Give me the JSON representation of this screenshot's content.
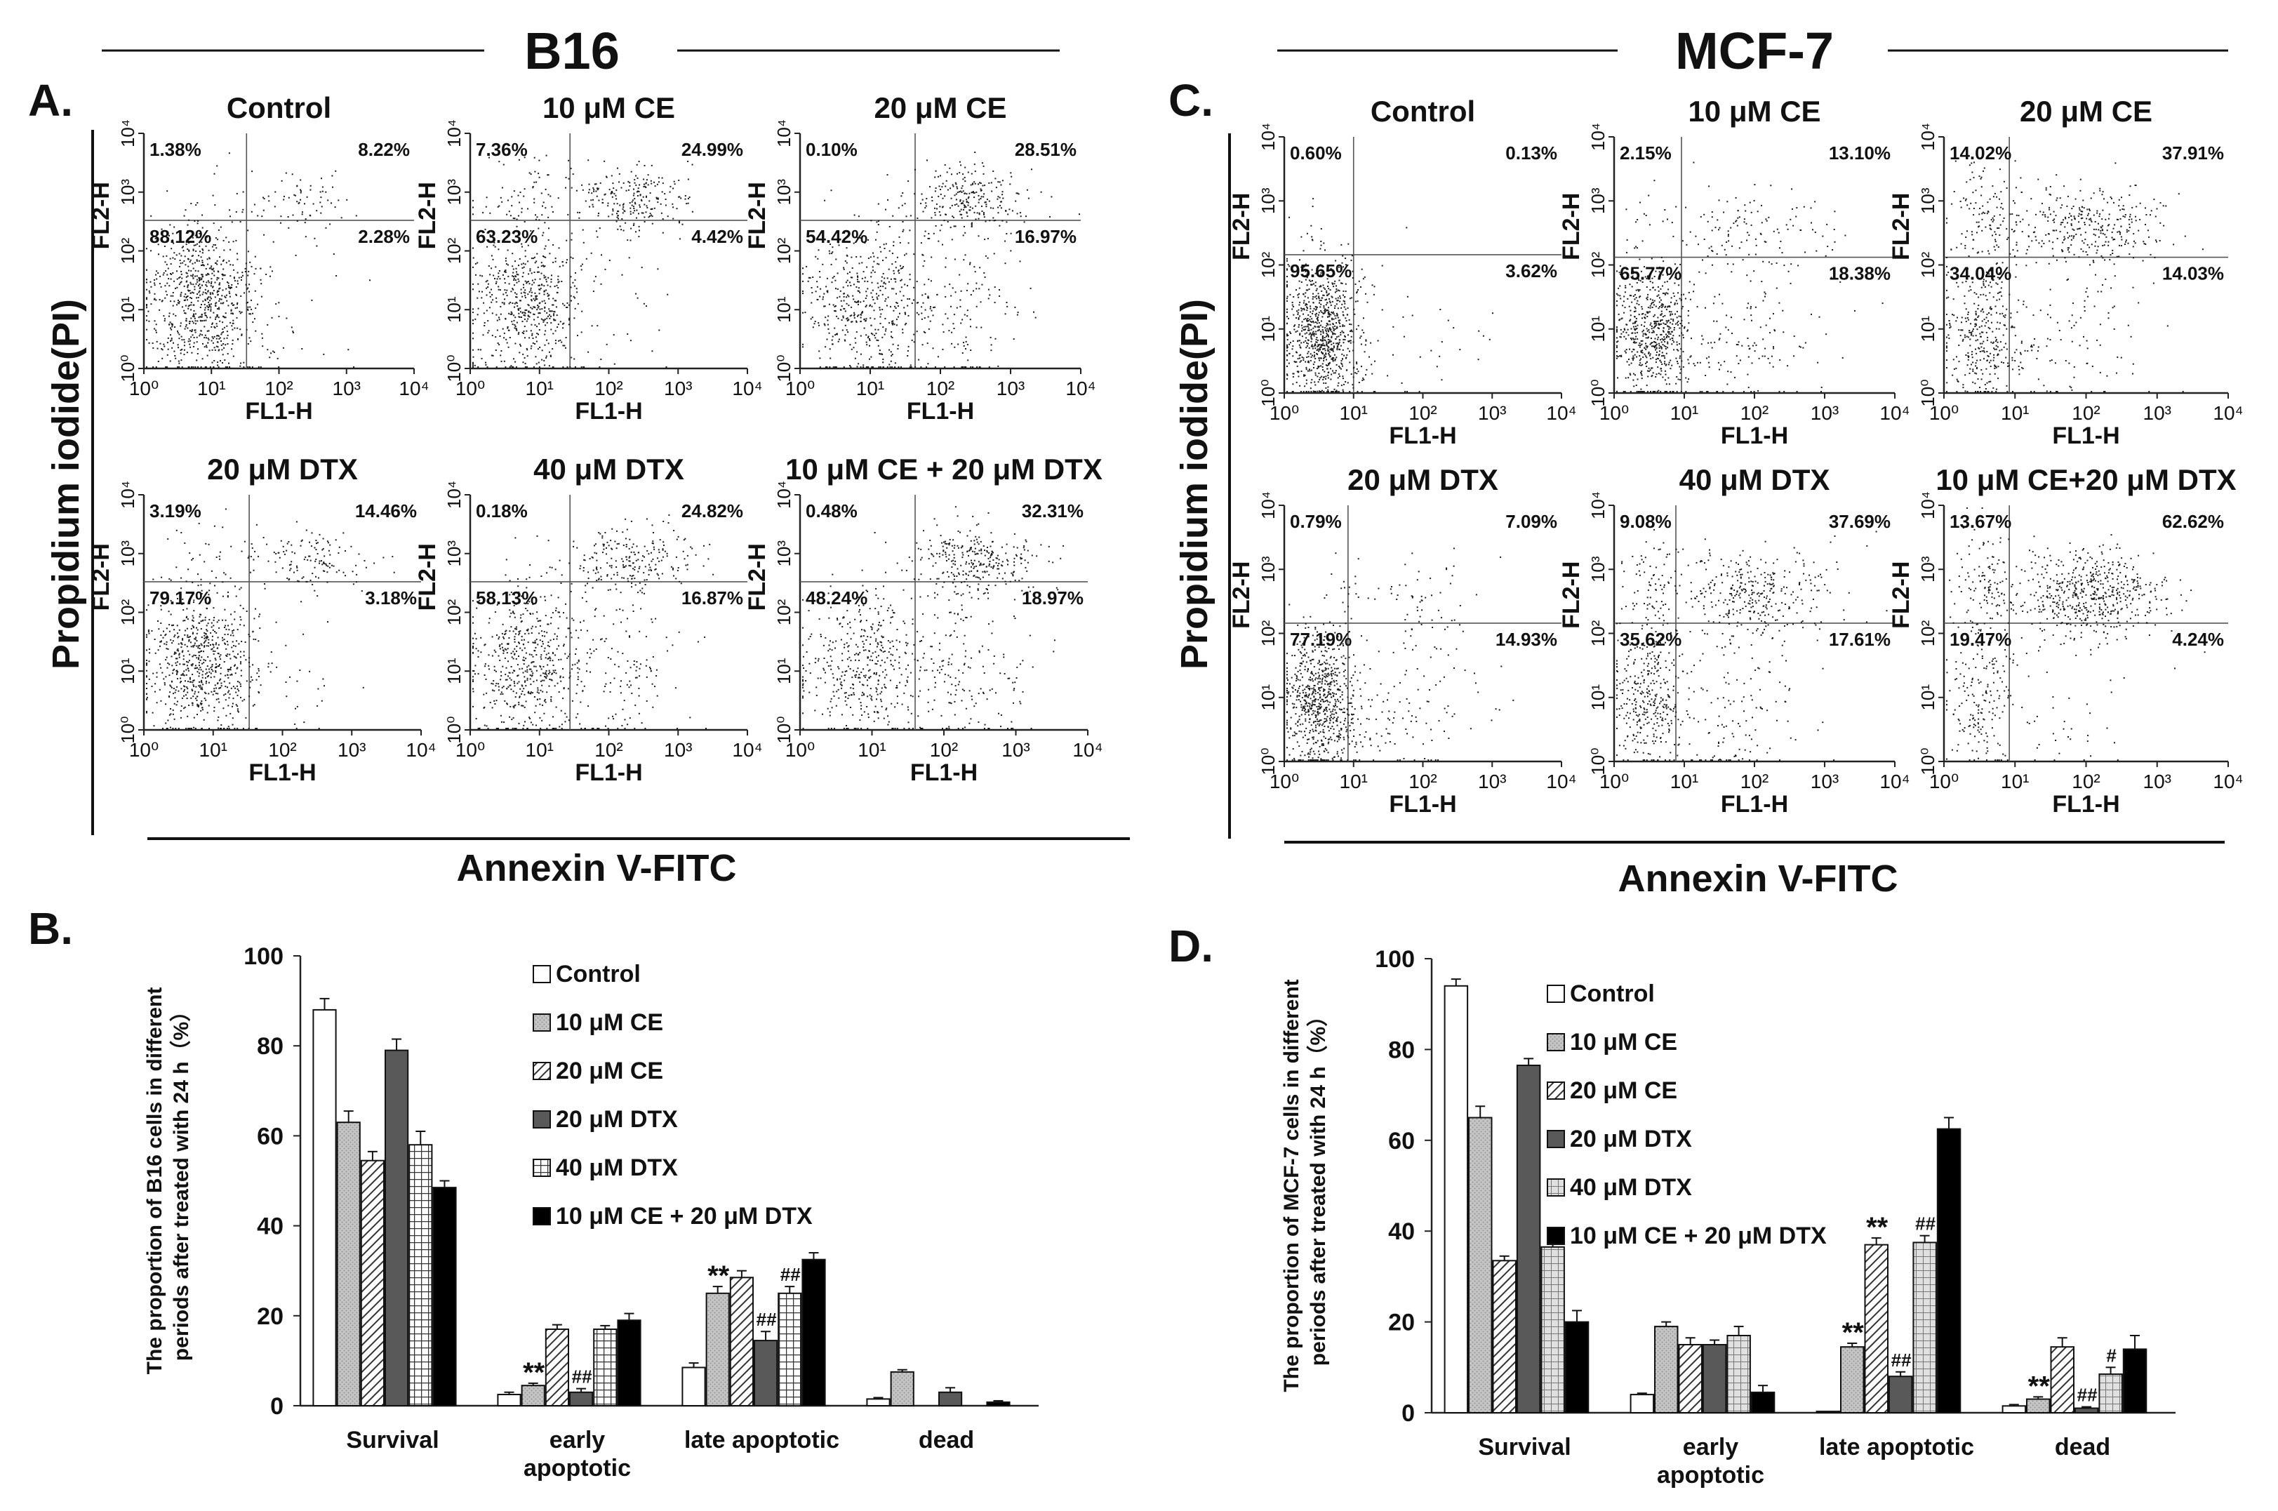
{
  "figure": {
    "colors": {
      "ink": "#111111",
      "grid": "#444444",
      "dot": "#1a1a1a",
      "bar_dark": "#555555",
      "bar_mid": "#9a9a9a",
      "bar_black": "#000000",
      "bar_white": "#ffffff"
    },
    "section_titles": {
      "b16": "B16",
      "mcf7": "MCF-7"
    },
    "panel_letters": {
      "A": "A.",
      "B": "B.",
      "C": "C.",
      "D": "D."
    },
    "flow_axis": {
      "y_title": "Propidium iodide(PI)",
      "x_title": "Annexin V-FITC",
      "x_label": "FL1-H",
      "y_label": "FL2-H",
      "ticks": [
        "10⁰",
        "10¹",
        "10²",
        "10³",
        "10⁴"
      ]
    },
    "flow_panels": {
      "A": [
        {
          "title": "Control",
          "ul": "1.38%",
          "ur": "8.22%",
          "ll": "88.12%",
          "lr": "2.28%"
        },
        {
          "title": "10 μM CE",
          "ul": "7.36%",
          "ur": "24.99%",
          "ll": "63.23%",
          "lr": "4.42%"
        },
        {
          "title": "20 μM CE",
          "ul": "0.10%",
          "ur": "28.51%",
          "ll": "54.42%",
          "lr": "16.97%"
        },
        {
          "title": "20 μM DTX",
          "ul": "3.19%",
          "ur": "14.46%",
          "ll": "79.17%",
          "lr": "3.18%"
        },
        {
          "title": "40 μM DTX",
          "ul": "0.18%",
          "ur": "24.82%",
          "ll": "58.13%",
          "lr": "16.87%"
        },
        {
          "title": "10 μM CE + 20 μM DTX",
          "ul": "0.48%",
          "ur": "32.31%",
          "ll": "48.24%",
          "lr": "18.97%"
        }
      ],
      "C": [
        {
          "title": "Control",
          "ul": "0.60%",
          "ur": "0.13%",
          "ll": "95.65%",
          "lr": "3.62%"
        },
        {
          "title": "10 μM CE",
          "ul": "2.15%",
          "ur": "13.10%",
          "ll": "65.77%",
          "lr": "18.38%"
        },
        {
          "title": "20 μM CE",
          "ul": "14.02%",
          "ur": "37.91%",
          "ll": "34.04%",
          "lr": "14.03%"
        },
        {
          "title": "20 μM DTX",
          "ul": "0.79%",
          "ur": "7.09%",
          "ll": "77.19%",
          "lr": "14.93%"
        },
        {
          "title": "40 μM DTX",
          "ul": "9.08%",
          "ur": "37.69%",
          "ll": "35.62%",
          "lr": "17.61%"
        },
        {
          "title": "10 μM CE+20 μM DTX",
          "ul": "13.67%",
          "ur": "62.62%",
          "ll": "19.47%",
          "lr": "4.24%"
        }
      ]
    }
  },
  "chart_data": [
    {
      "type": "bar",
      "panel": "B",
      "ylabel": "The proportion of B16 cells in different periods after treated with 24 h（%）",
      "ylabel_lines": [
        "The proportion of B16 cells in different",
        "periods after treated with 24 h（%）"
      ],
      "ylim": [
        0,
        100
      ],
      "yticks": [
        0,
        20,
        40,
        60,
        80,
        100
      ],
      "categories": [
        "Survival",
        "early apoptotic",
        "late apoptotic",
        "dead"
      ],
      "category_lines": [
        [
          "Survival"
        ],
        [
          "early",
          "apoptotic"
        ],
        [
          "late apoptotic"
        ],
        [
          "dead"
        ]
      ],
      "legend_position": "top-right",
      "series": [
        {
          "name": "Control",
          "pattern": "white",
          "values": [
            88,
            2.5,
            8.5,
            1.5
          ],
          "errors": [
            2.5,
            0.5,
            1,
            0.3
          ]
        },
        {
          "name": "10 μM CE",
          "pattern": "light",
          "values": [
            63,
            4.5,
            25,
            7.5
          ],
          "errors": [
            2.5,
            0.5,
            1.5,
            0.5
          ]
        },
        {
          "name": "20 μM CE",
          "pattern": "diag",
          "values": [
            54.5,
            17,
            28.5,
            0
          ],
          "errors": [
            2,
            1,
            1.5,
            0
          ]
        },
        {
          "name": "20 μM DTX",
          "pattern": "dark",
          "values": [
            79,
            3,
            14.5,
            3
          ],
          "errors": [
            2.5,
            0.8,
            2,
            1
          ]
        },
        {
          "name": "40 μM DTX",
          "pattern": "grid",
          "values": [
            58,
            17,
            25,
            0
          ],
          "errors": [
            3,
            0.8,
            1.5,
            0
          ]
        },
        {
          "name": "10 μM CE + 20 μM DTX",
          "pattern": "black",
          "values": [
            48.5,
            19,
            32.5,
            0.8
          ],
          "errors": [
            1.5,
            1.5,
            1.5,
            0.3
          ]
        }
      ],
      "annotations": [
        {
          "text": "**",
          "category": 1,
          "series": 1
        },
        {
          "text": "##",
          "category": 1,
          "series": 3
        },
        {
          "text": "**",
          "category": 2,
          "series": 1
        },
        {
          "text": "##",
          "category": 2,
          "series": 3
        },
        {
          "text": "##",
          "category": 2,
          "series": 4
        }
      ]
    },
    {
      "type": "bar",
      "panel": "D",
      "ylabel": "The proportion of MCF-7 cells in different periods after treated with 24 h（%）",
      "ylabel_lines": [
        "The proportion of MCF-7 cells in different",
        "periods after treated with 24 h（%）"
      ],
      "ylim": [
        0,
        100
      ],
      "yticks": [
        0,
        20,
        40,
        60,
        80,
        100
      ],
      "categories": [
        "Survival",
        "early apoptotic",
        "late apoptotic",
        "dead"
      ],
      "category_lines": [
        [
          "Survival"
        ],
        [
          "early",
          "apoptotic"
        ],
        [
          "late apoptotic"
        ],
        [
          "dead"
        ]
      ],
      "legend_position": "top-right",
      "series": [
        {
          "name": "Control",
          "pattern": "white",
          "values": [
            94,
            4,
            0.3,
            1.5
          ],
          "errors": [
            1.5,
            0.3,
            0,
            0.3
          ]
        },
        {
          "name": "10 μM CE",
          "pattern": "light",
          "values": [
            65,
            19,
            14.5,
            3
          ],
          "errors": [
            2.5,
            1,
            0.8,
            0.5
          ]
        },
        {
          "name": "20 μM CE",
          "pattern": "diag",
          "values": [
            33.5,
            15,
            37,
            14.5
          ],
          "errors": [
            1,
            1.5,
            1.5,
            2
          ]
        },
        {
          "name": "20 μM DTX",
          "pattern": "dark",
          "values": [
            76.5,
            15,
            8,
            1
          ],
          "errors": [
            1.5,
            1,
            1,
            0.3
          ]
        },
        {
          "name": "40 μM DTX",
          "pattern": "lightgrid",
          "values": [
            36.5,
            17,
            37.5,
            8.5
          ],
          "errors": [
            2,
            2,
            1.5,
            1.5
          ]
        },
        {
          "name": "10 μM CE + 20 μM DTX",
          "pattern": "black",
          "values": [
            20,
            4.5,
            62.5,
            14
          ],
          "errors": [
            2.5,
            1.5,
            2.5,
            3
          ]
        }
      ],
      "annotations": [
        {
          "text": "**",
          "category": 2,
          "series": 1
        },
        {
          "text": "**",
          "category": 2,
          "series": 2
        },
        {
          "text": "##",
          "category": 2,
          "series": 3
        },
        {
          "text": "##",
          "category": 2,
          "series": 4
        },
        {
          "text": "**",
          "category": 3,
          "series": 1
        },
        {
          "text": "##",
          "category": 3,
          "series": 3
        },
        {
          "text": "#",
          "category": 3,
          "series": 4
        }
      ]
    }
  ]
}
